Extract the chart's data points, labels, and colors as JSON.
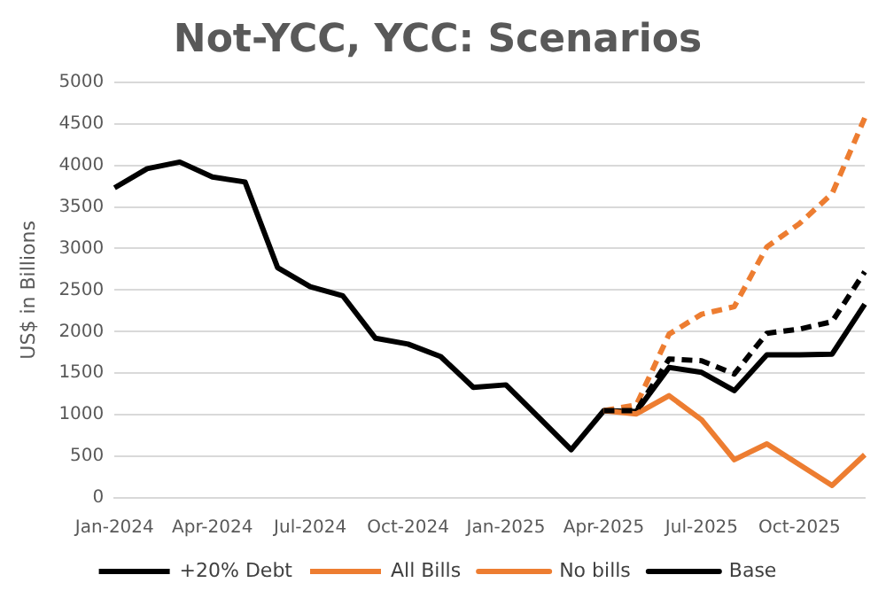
{
  "chart_data": {
    "type": "line",
    "title": "Not-YCC, YCC: Scenarios",
    "ylabel": "US$ in Billions",
    "categories": [
      "Jan-2024",
      null,
      null,
      "Apr-2024",
      null,
      null,
      "Jul-2024",
      null,
      null,
      "Oct-2024",
      null,
      null,
      "Jan-2025",
      null,
      null,
      "Apr-2025",
      null,
      null,
      "Jul-2025",
      null,
      null,
      "Oct-2025",
      null,
      null
    ],
    "series": [
      {
        "name": "+20% Debt",
        "color": "#000000",
        "line_style": "dashed",
        "values": [
          null,
          null,
          null,
          null,
          null,
          null,
          null,
          null,
          null,
          null,
          null,
          null,
          null,
          null,
          null,
          1050,
          1050,
          1670,
          1650,
          1490,
          1980,
          2030,
          2120,
          2720
        ]
      },
      {
        "name": "All Bills",
        "color": "#ed7d31",
        "line_style": "dashed",
        "values": [
          null,
          null,
          null,
          null,
          null,
          null,
          null,
          null,
          null,
          null,
          null,
          null,
          null,
          null,
          null,
          1050,
          1120,
          1970,
          2210,
          2300,
          3020,
          3300,
          3660,
          4570
        ]
      },
      {
        "name": "No bills",
        "color": "#ed7d31",
        "line_style": "solid",
        "values": [
          null,
          null,
          null,
          null,
          null,
          null,
          null,
          null,
          null,
          null,
          null,
          null,
          null,
          null,
          null,
          1050,
          1010,
          1230,
          940,
          460,
          650,
          400,
          150,
          520
        ]
      },
      {
        "name": "Base",
        "color": "#000000",
        "line_style": "solid",
        "values": [
          3730,
          3960,
          4040,
          3860,
          3800,
          2770,
          2540,
          2430,
          1920,
          1850,
          1700,
          1330,
          1360,
          970,
          580,
          1050,
          1040,
          1570,
          1510,
          1290,
          1720,
          1720,
          1730,
          2330
        ]
      }
    ],
    "ylim": [
      0,
      5000
    ],
    "yticks": [
      0,
      500,
      1000,
      1500,
      2000,
      2500,
      3000,
      3500,
      4000,
      4500,
      5000
    ],
    "grid": "y",
    "legend": "bottom",
    "marker": "none"
  }
}
